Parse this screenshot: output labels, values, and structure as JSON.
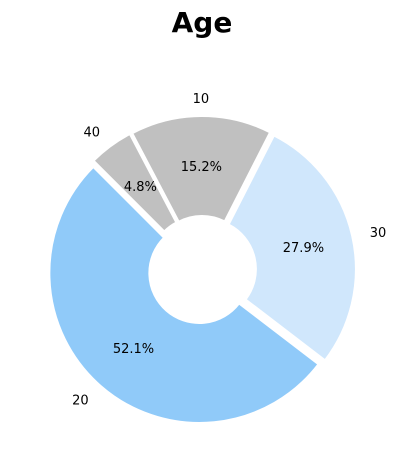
{
  "chart_data": {
    "type": "pie",
    "variant": "donut",
    "title": "Age",
    "categories": [
      "10",
      "40",
      "20",
      "30"
    ],
    "values": [
      15.2,
      4.8,
      52.1,
      27.9
    ],
    "percent_labels": [
      "15.2%",
      "4.8%",
      "52.1%",
      "27.9%"
    ],
    "colors": [
      "#c0c0c0",
      "#c0c0c0",
      "#90caf9",
      "#d0e7fc"
    ],
    "legend": "none"
  }
}
